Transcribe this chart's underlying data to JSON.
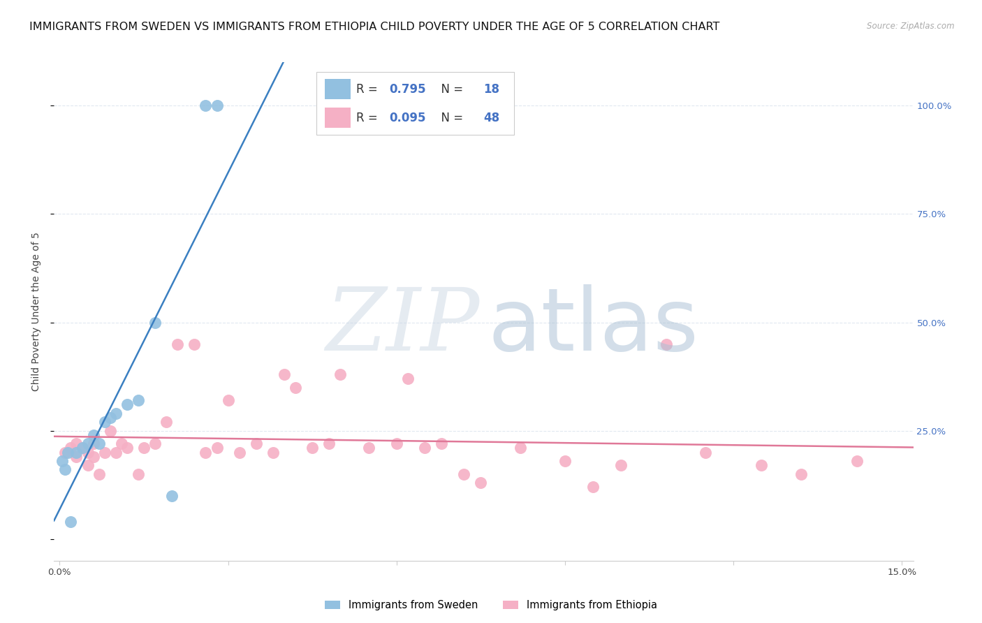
{
  "title": "IMMIGRANTS FROM SWEDEN VS IMMIGRANTS FROM ETHIOPIA CHILD POVERTY UNDER THE AGE OF 5 CORRELATION CHART",
  "source": "Source: ZipAtlas.com",
  "ylabel": "Child Poverty Under the Age of 5",
  "xlim": [
    -0.001,
    0.152
  ],
  "ylim": [
    -0.05,
    1.1
  ],
  "sweden_color": "#92c0e0",
  "sweden_line_color": "#3a7fc1",
  "ethiopia_color": "#f5b0c5",
  "ethiopia_line_color": "#e07898",
  "sweden_R": 0.795,
  "sweden_N": 18,
  "ethiopia_R": 0.095,
  "ethiopia_N": 48,
  "background_color": "#ffffff",
  "grid_color": "#e0e8f0",
  "title_fontsize": 11.5,
  "axis_label_fontsize": 10,
  "tick_fontsize": 9.5,
  "right_tick_color": "#4472c4",
  "scatter_size": 150,
  "sweden_x": [
    0.0005,
    0.001,
    0.0015,
    0.002,
    0.003,
    0.004,
    0.005,
    0.006,
    0.007,
    0.008,
    0.009,
    0.01,
    0.012,
    0.014,
    0.017,
    0.02,
    0.026,
    0.028
  ],
  "sweden_y": [
    0.18,
    0.16,
    0.2,
    0.04,
    0.2,
    0.21,
    0.22,
    0.24,
    0.22,
    0.27,
    0.28,
    0.29,
    0.31,
    0.32,
    0.5,
    0.1,
    1.0,
    1.0
  ],
  "ethiopia_x": [
    0.001,
    0.002,
    0.003,
    0.003,
    0.004,
    0.005,
    0.005,
    0.006,
    0.006,
    0.007,
    0.008,
    0.009,
    0.01,
    0.011,
    0.012,
    0.014,
    0.015,
    0.017,
    0.019,
    0.021,
    0.024,
    0.026,
    0.028,
    0.03,
    0.032,
    0.035,
    0.038,
    0.04,
    0.042,
    0.045,
    0.048,
    0.05,
    0.055,
    0.06,
    0.062,
    0.065,
    0.068,
    0.072,
    0.075,
    0.082,
    0.09,
    0.095,
    0.1,
    0.108,
    0.115,
    0.125,
    0.132,
    0.142
  ],
  "ethiopia_y": [
    0.2,
    0.21,
    0.19,
    0.22,
    0.21,
    0.2,
    0.17,
    0.19,
    0.22,
    0.15,
    0.2,
    0.25,
    0.2,
    0.22,
    0.21,
    0.15,
    0.21,
    0.22,
    0.27,
    0.45,
    0.45,
    0.2,
    0.21,
    0.32,
    0.2,
    0.22,
    0.2,
    0.38,
    0.35,
    0.21,
    0.22,
    0.38,
    0.21,
    0.22,
    0.37,
    0.21,
    0.22,
    0.15,
    0.13,
    0.21,
    0.18,
    0.12,
    0.17,
    0.45,
    0.2,
    0.17,
    0.15,
    0.18
  ]
}
